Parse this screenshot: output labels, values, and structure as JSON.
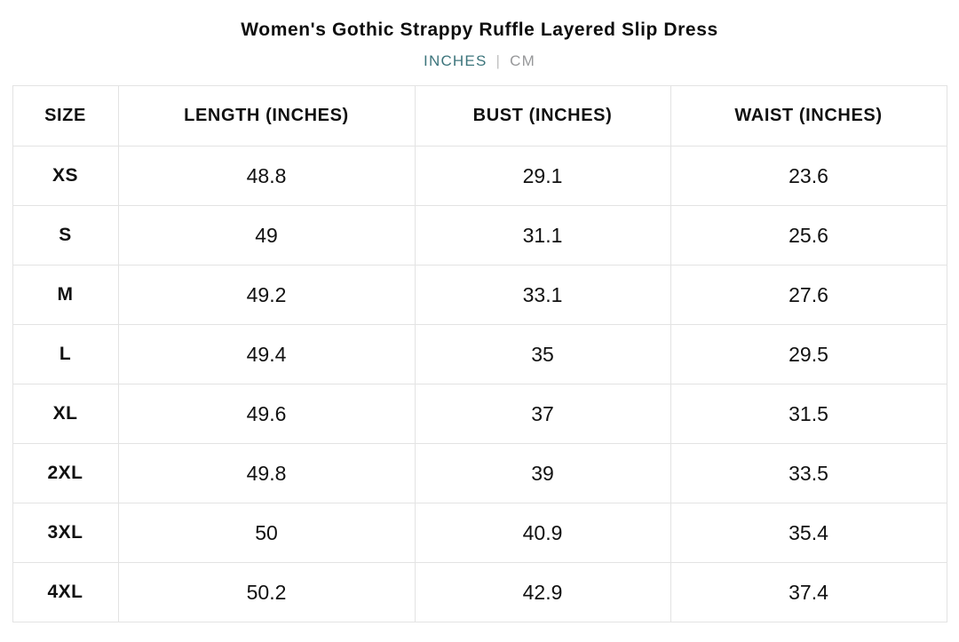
{
  "title": "Women's Gothic Strappy Ruffle Layered Slip Dress",
  "unit_toggle": {
    "inches_label": "INCHES",
    "separator": "|",
    "cm_label": "CM",
    "active_unit": "INCHES",
    "active_color": "#3d757c",
    "inactive_color": "#97989a"
  },
  "table": {
    "headers": [
      "SIZE",
      "LENGTH (INCHES)",
      "BUST (INCHES)",
      "WAIST (INCHES)"
    ],
    "rows": [
      {
        "size": "XS",
        "length": "48.8",
        "bust": "29.1",
        "waist": "23.6"
      },
      {
        "size": "S",
        "length": "49",
        "bust": "31.1",
        "waist": "25.6"
      },
      {
        "size": "M",
        "length": "49.2",
        "bust": "33.1",
        "waist": "27.6"
      },
      {
        "size": "L",
        "length": "49.4",
        "bust": "35",
        "waist": "29.5"
      },
      {
        "size": "XL",
        "length": "49.6",
        "bust": "37",
        "waist": "31.5"
      },
      {
        "size": "2XL",
        "length": "49.8",
        "bust": "39",
        "waist": "33.5"
      },
      {
        "size": "3XL",
        "length": "50",
        "bust": "40.9",
        "waist": "35.4"
      },
      {
        "size": "4XL",
        "length": "50.2",
        "bust": "42.9",
        "waist": "37.4"
      }
    ]
  }
}
